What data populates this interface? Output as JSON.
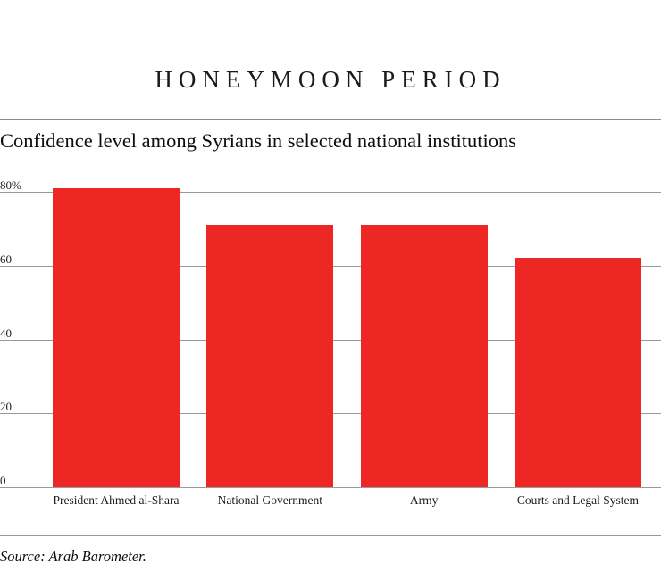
{
  "page": {
    "title": "HONEYMOON PERIOD",
    "subtitle": "Confidence level among Syrians in selected national institutions",
    "source": "Source: Arab Barometer."
  },
  "chart_data": {
    "type": "bar",
    "title": "HONEYMOON PERIOD",
    "subtitle": "Confidence level among Syrians in selected national institutions",
    "categories": [
      "President Ahmed al-Shara",
      "National Government",
      "Army",
      "Courts and Legal System"
    ],
    "values": [
      81,
      71,
      71,
      62
    ],
    "xlabel": "",
    "ylabel": "",
    "ylim": [
      0,
      80
    ],
    "yticks": [
      {
        "value": 80,
        "label": "80%"
      },
      {
        "value": 60,
        "label": "60"
      },
      {
        "value": 40,
        "label": "40"
      },
      {
        "value": 20,
        "label": "20"
      },
      {
        "value": 0,
        "label": "0"
      }
    ],
    "grid": true,
    "legend": "none",
    "bar_color": "#ed2724",
    "gridline_color": "#9a9a9a",
    "source": "Source: Arab Barometer."
  }
}
